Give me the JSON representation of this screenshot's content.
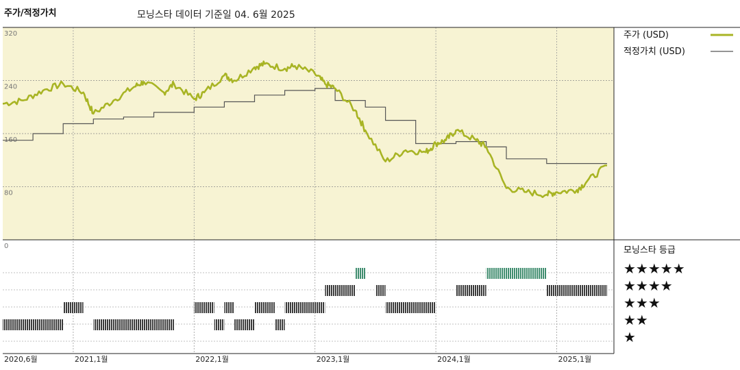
{
  "header": {
    "title": "주가/적정가치",
    "subtitle": "모닝스타 데이터 기준일 04. 6월 2025"
  },
  "legend": {
    "price_label": "주가 (USD)",
    "fair_label": "적정가치 (USD)",
    "rating_title": "모닝스타 등급"
  },
  "colors": {
    "price": "#A8B424",
    "fair": "#555555",
    "plot_bg": "#F7F3D3",
    "five_star": "#3F8C6E",
    "other_star": "#3A3A3A"
  },
  "chart_data": [
    {
      "type": "line",
      "title": "주가/적정가치",
      "x_start": "2020-06",
      "x_end": "2025-06",
      "ylim": [
        0,
        320
      ],
      "yticks": [
        "320",
        "240",
        "160",
        "80",
        "0"
      ],
      "xticks": [
        {
          "label": "2020,6월",
          "date": "2020-06"
        },
        {
          "label": "2021,1월",
          "date": "2021-01"
        },
        {
          "label": "2022,1월",
          "date": "2022-01"
        },
        {
          "label": "2023,1월",
          "date": "2023-01"
        },
        {
          "label": "2024,1월",
          "date": "2024-01"
        },
        {
          "label": "2025,1월",
          "date": "2025-01"
        }
      ],
      "series": [
        {
          "name": "주가 (USD)",
          "x": [
            "2020-06",
            "2020-08",
            "2020-10",
            "2020-12",
            "2021-02",
            "2021-03",
            "2021-05",
            "2021-07",
            "2021-08",
            "2021-10",
            "2021-11",
            "2022-01",
            "2022-02",
            "2022-04",
            "2022-05",
            "2022-07",
            "2022-08",
            "2022-10",
            "2022-11",
            "2023-01",
            "2023-02",
            "2023-03",
            "2023-05",
            "2023-06",
            "2023-08",
            "2023-10",
            "2023-12",
            "2024-01",
            "2024-02",
            "2024-03",
            "2024-05",
            "2024-06",
            "2024-08",
            "2024-10",
            "2024-12",
            "2025-01",
            "2025-03",
            "2025-04",
            "2025-06"
          ],
          "values": [
            205,
            210,
            225,
            235,
            222,
            190,
            210,
            230,
            238,
            222,
            235,
            212,
            222,
            248,
            240,
            260,
            265,
            258,
            262,
            250,
            235,
            228,
            195,
            165,
            118,
            135,
            132,
            145,
            150,
            165,
            150,
            140,
            78,
            72,
            68,
            72,
            75,
            88,
            112
          ]
        },
        {
          "name": "적정가치 (USD)",
          "x": [
            "2020-06",
            "2020-09",
            "2020-12",
            "2021-03",
            "2021-06",
            "2021-09",
            "2022-01",
            "2022-04",
            "2022-07",
            "2022-10",
            "2023-01",
            "2023-03",
            "2023-06",
            "2023-08",
            "2023-11",
            "2024-03",
            "2024-06",
            "2024-08",
            "2024-12",
            "2025-06"
          ],
          "values": [
            150,
            160,
            175,
            182,
            185,
            192,
            200,
            208,
            218,
            225,
            228,
            210,
            200,
            180,
            145,
            148,
            140,
            122,
            115,
            115
          ]
        }
      ]
    },
    {
      "type": "bar",
      "title": "모닝스타 등급",
      "categories": [
        "★★★★★",
        "★★★★",
        "★★★",
        "★★",
        "★"
      ],
      "values": [
        5,
        4,
        3,
        2,
        1
      ],
      "segments": [
        {
          "stars": 2,
          "from": "2020-06",
          "to": "2020-12"
        },
        {
          "stars": 3,
          "from": "2020-12",
          "to": "2021-02"
        },
        {
          "stars": 2,
          "from": "2021-03",
          "to": "2021-11"
        },
        {
          "stars": 3,
          "from": "2022-01",
          "to": "2022-03"
        },
        {
          "stars": 2,
          "from": "2022-03",
          "to": "2022-04"
        },
        {
          "stars": 3,
          "from": "2022-04",
          "to": "2022-05"
        },
        {
          "stars": 2,
          "from": "2022-05",
          "to": "2022-07"
        },
        {
          "stars": 3,
          "from": "2022-07",
          "to": "2022-09"
        },
        {
          "stars": 2,
          "from": "2022-09",
          "to": "2022-10"
        },
        {
          "stars": 3,
          "from": "2022-10",
          "to": "2023-02"
        },
        {
          "stars": 4,
          "from": "2023-02",
          "to": "2023-05"
        },
        {
          "stars": 5,
          "from": "2023-05",
          "to": "2023-06"
        },
        {
          "stars": 4,
          "from": "2023-07",
          "to": "2023-08"
        },
        {
          "stars": 3,
          "from": "2023-08",
          "to": "2024-01"
        },
        {
          "stars": 4,
          "from": "2024-03",
          "to": "2024-06"
        },
        {
          "stars": 5,
          "from": "2024-06",
          "to": "2024-12"
        },
        {
          "stars": 4,
          "from": "2024-12",
          "to": "2025-06"
        }
      ]
    }
  ]
}
